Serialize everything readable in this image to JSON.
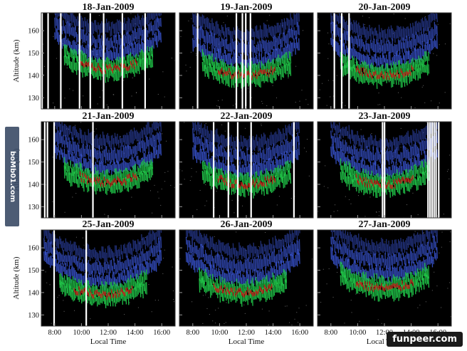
{
  "watermarks": {
    "side": "boMb01.com",
    "corner": "funpeer.com"
  },
  "chart_data": {
    "type": "heatmap",
    "xlabel": "Local Time",
    "ylabel": "Altitude (km)",
    "xlim": [
      7,
      17
    ],
    "ylim": [
      125,
      168
    ],
    "xticks": [
      "8:00",
      "10:00",
      "12:00",
      "14:00",
      "16:00"
    ],
    "yticks": [
      130,
      140,
      150,
      160
    ],
    "colors": {
      "background": "#000000",
      "low": "#3b57d9",
      "mid": "#21c94a",
      "high": "#d01818",
      "gap": "#ffffff"
    },
    "panels": [
      {
        "title": "18-Jan-2009",
        "echo_center_km": 143,
        "echo_hours": [
          8.0,
          16.0
        ],
        "gaps_hours": [
          7.0,
          7.45,
          8.4,
          9.8,
          10.6,
          11.6,
          13.0,
          14.7
        ]
      },
      {
        "title": "19-Jan-2009",
        "echo_center_km": 140,
        "echo_hours": [
          8.0,
          16.0
        ],
        "gaps_hours": [
          8.3,
          11.2,
          11.65,
          11.9,
          12.25
        ]
      },
      {
        "title": "20-Jan-2009",
        "echo_center_km": 140,
        "echo_hours": [
          8.0,
          16.0
        ],
        "gaps_hours": [
          8.2,
          8.75,
          9.3
        ]
      },
      {
        "title": "21-Jan-2009",
        "echo_center_km": 141,
        "echo_hours": [
          8.0,
          16.0
        ],
        "gaps_hours": [
          7.2,
          7.4,
          7.9,
          10.8
        ]
      },
      {
        "title": "22-Jan-2009",
        "echo_center_km": 140,
        "echo_hours": [
          8.0,
          16.0
        ],
        "gaps_hours": [
          9.5,
          10.6,
          11.3,
          12.3,
          15.5
        ]
      },
      {
        "title": "23-Jan-2009",
        "echo_center_km": 140,
        "echo_hours": [
          8.0,
          16.0
        ],
        "gaps_hours": [
          11.8,
          11.95,
          15.2,
          15.35,
          15.5,
          15.65,
          15.8,
          16.0
        ]
      },
      {
        "title": "25-Jan-2009",
        "echo_center_km": 139,
        "echo_hours": [
          7.2,
          16.0
        ],
        "gaps_hours": [
          7.9,
          10.3
        ]
      },
      {
        "title": "26-Jan-2009",
        "echo_center_km": 140,
        "echo_hours": [
          7.5,
          16.0
        ],
        "gaps_hours": []
      },
      {
        "title": "27-Jan-2009",
        "echo_center_km": 142,
        "echo_hours": [
          8.0,
          16.0
        ],
        "gaps_hours": []
      }
    ]
  }
}
